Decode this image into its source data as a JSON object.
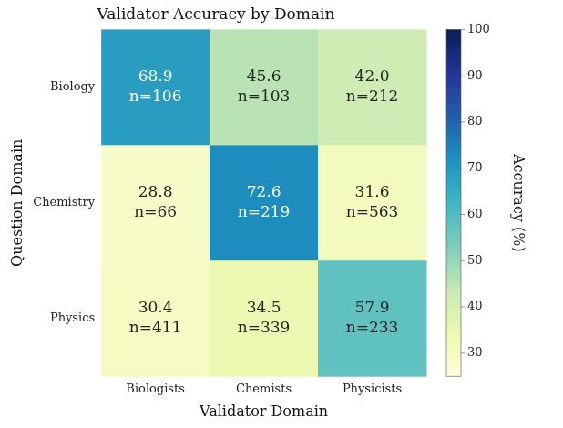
{
  "chart_data": {
    "type": "heatmap",
    "title": "Validator Accuracy by Domain",
    "x_label": "Validator Domain",
    "y_label": "Question Domain",
    "x_categories": [
      "Biologists",
      "Chemists",
      "Physicists"
    ],
    "y_categories": [
      "Biology",
      "Chemistry",
      "Physics"
    ],
    "cells": [
      [
        68.9,
        45.6,
        42.0
      ],
      [
        28.8,
        72.6,
        31.6
      ],
      [
        30.4,
        34.5,
        57.9
      ]
    ],
    "value_labels": [
      [
        "68.9",
        "45.6",
        "42.0"
      ],
      [
        "28.8",
        "72.6",
        "31.6"
      ],
      [
        "30.4",
        "34.5",
        "57.9"
      ]
    ],
    "count_labels": [
      [
        "n=106",
        "n=103",
        "n=212"
      ],
      [
        "n=66",
        "n=219",
        "n=563"
      ],
      [
        "n=411",
        "n=339",
        "n=233"
      ]
    ],
    "colorbar": {
      "label": "Accuracy (%)",
      "range": [
        25,
        100
      ],
      "ticks": [
        30,
        40,
        50,
        60,
        70,
        80,
        90,
        100
      ]
    }
  }
}
